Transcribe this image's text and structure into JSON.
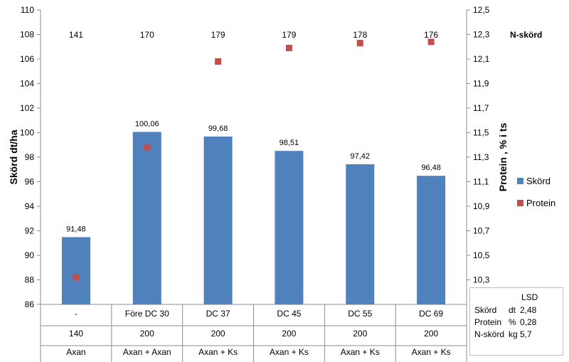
{
  "chart_data": {
    "type": "bar",
    "categories": [
      "-",
      "Före DC 30",
      "DC 37",
      "DC 45",
      "DC 55",
      "DC 69"
    ],
    "category_row2": [
      "140",
      "200",
      "200",
      "200",
      "200",
      "200"
    ],
    "category_row3": [
      "Axan",
      "Axan + Axan",
      "Axan + Ks",
      "Axan + Ks",
      "Axan + Ks",
      "Axan + Ks"
    ],
    "series": [
      {
        "name": "Skörd",
        "type": "bar",
        "axis": "left",
        "color": "#4f81bd",
        "values": [
          91.48,
          100.06,
          99.68,
          98.51,
          97.42,
          96.48
        ],
        "value_labels": [
          "91,48",
          "100,06",
          "99,68",
          "98,51",
          "97,42",
          "96,48"
        ]
      },
      {
        "name": "Protein",
        "type": "scatter",
        "axis": "right",
        "color": "#c0504d",
        "values": [
          10.32,
          11.38,
          12.08,
          12.19,
          12.23,
          12.24
        ]
      }
    ],
    "n_skord_label": "N-skörd",
    "n_skord_values": [
      "141",
      "170",
      "179",
      "179",
      "178",
      "176"
    ],
    "ylabel": "Skörd dt/ha",
    "y2label": "Protein , % i ts",
    "ylim": [
      86,
      110
    ],
    "y2lim": [
      10.1,
      12.5
    ],
    "yticks": [
      "86",
      "88",
      "90",
      "92",
      "94",
      "96",
      "98",
      "100",
      "102",
      "104",
      "106",
      "108",
      "110"
    ],
    "y2ticks": [
      "10,3",
      "10,5",
      "10,7",
      "10,9",
      "11,1",
      "11,3",
      "11,5",
      "11,7",
      "11,9",
      "12,1",
      "12,3",
      "12,5"
    ],
    "y2tick_values": [
      10.3,
      10.5,
      10.7,
      10.9,
      11.1,
      11.3,
      11.5,
      11.7,
      11.9,
      12.1,
      12.3,
      12.5
    ],
    "legend_position": "right",
    "grid": false
  },
  "lsd": {
    "title": "LSD",
    "rows": [
      {
        "name": "Skörd",
        "unit": "dt",
        "value": "2,48"
      },
      {
        "name": "Protein",
        "unit": "%",
        "value": "0,28"
      },
      {
        "name": "N-skörd",
        "unit": "kg",
        "value": "5,7"
      }
    ]
  }
}
